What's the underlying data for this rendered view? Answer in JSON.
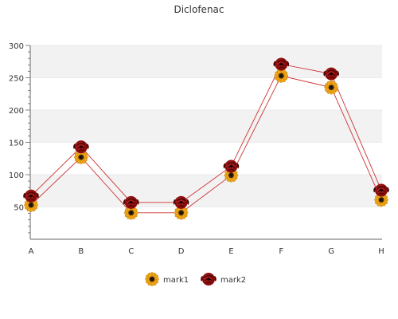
{
  "chart_data": {
    "type": "line",
    "title": "Diclofenac",
    "xlabel": "",
    "ylabel": "",
    "categories": [
      "A",
      "B",
      "C",
      "D",
      "E",
      "F",
      "G",
      "H"
    ],
    "series": [
      {
        "name": "mark1",
        "values": [
          53,
          127,
          41,
          41,
          99,
          253,
          235,
          61
        ],
        "color": "#cc3333",
        "marker": "sunflower-icon"
      },
      {
        "name": "mark2",
        "values": [
          67,
          143,
          57,
          57,
          113,
          271,
          256,
          76
        ],
        "color": "#cc3333",
        "marker": "rose-icon"
      }
    ],
    "ylim": [
      0,
      300
    ],
    "yticks": [
      50,
      100,
      150,
      200,
      250,
      300
    ],
    "grid": true,
    "legend": "bottom-center",
    "colors": {
      "band": "#f2f2f2",
      "axis": "#666666",
      "gridline": "#dddddd"
    }
  }
}
